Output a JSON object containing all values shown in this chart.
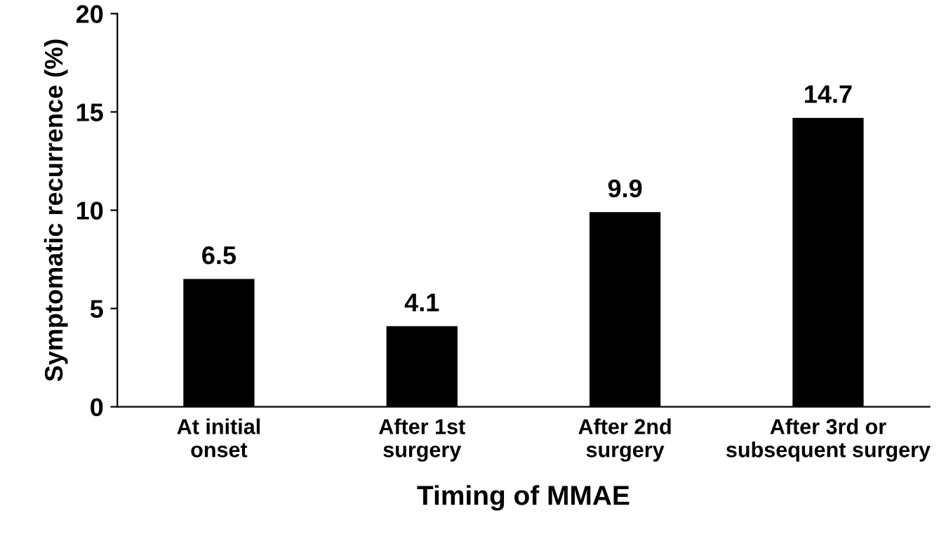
{
  "chart_data": {
    "type": "bar",
    "xlabel": "Timing of MMAE",
    "ylabel": "Symptomatic recurrence (%)",
    "categories": [
      "At initial\nonset",
      "After 1st\nsurgery",
      "After 2nd\nsurgery",
      "After 3rd or\nsubsequent surgery"
    ],
    "values": [
      6.5,
      4.1,
      9.9,
      14.7
    ],
    "color": "#000000",
    "ylim": [
      0,
      20
    ],
    "yticks": [
      0,
      5,
      10,
      15,
      20
    ],
    "grid": false,
    "data_labels": true
  }
}
